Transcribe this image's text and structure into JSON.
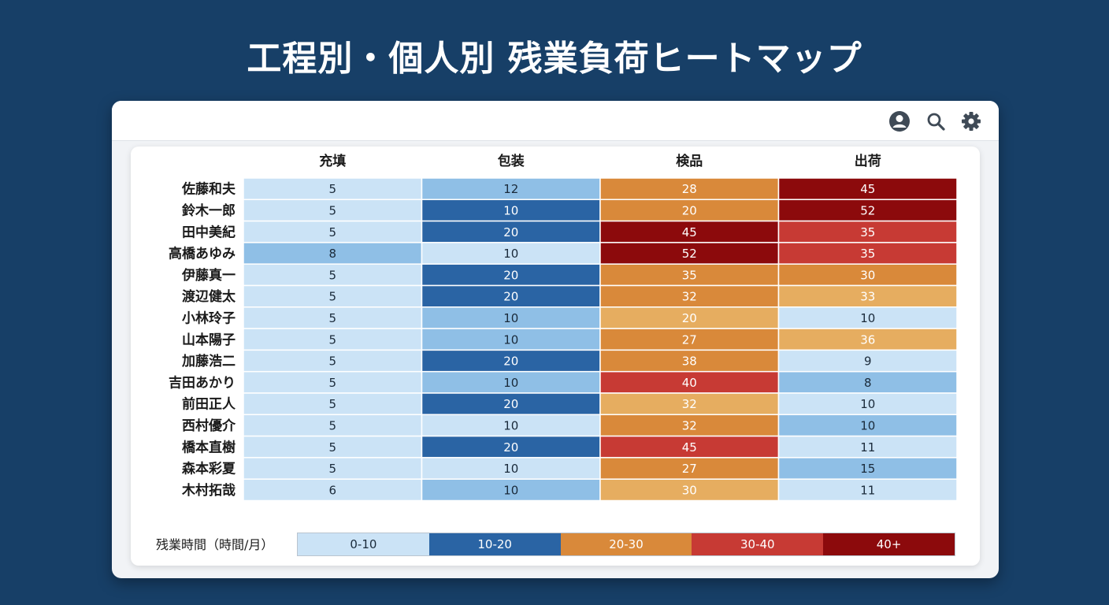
{
  "page": {
    "title": "工程別・個人別 残業負荷ヒートマップ"
  },
  "toolbar": {
    "icons": [
      "user-icon",
      "search-icon",
      "gear-icon"
    ]
  },
  "chart_data": {
    "type": "heatmap",
    "title": "工程別・個人別 残業負荷ヒートマップ",
    "columns": [
      "充填",
      "包装",
      "検品",
      "出荷"
    ],
    "rows": [
      "佐藤和夫",
      "鈴木一郎",
      "田中美紀",
      "高橋あゆみ",
      "伊藤真一",
      "渡辺健太",
      "小林玲子",
      "山本陽子",
      "加藤浩二",
      "吉田あかり",
      "前田正人",
      "西村優介",
      "橋本直樹",
      "森本彩夏",
      "木村拓哉"
    ],
    "values": [
      [
        5,
        12,
        28,
        45
      ],
      [
        5,
        10,
        20,
        52
      ],
      [
        5,
        20,
        45,
        35
      ],
      [
        8,
        10,
        52,
        35
      ],
      [
        5,
        20,
        35,
        30
      ],
      [
        5,
        20,
        32,
        33
      ],
      [
        5,
        10,
        20,
        10
      ],
      [
        5,
        10,
        27,
        36
      ],
      [
        5,
        20,
        38,
        9
      ],
      [
        5,
        10,
        40,
        8
      ],
      [
        5,
        20,
        32,
        10
      ],
      [
        5,
        10,
        32,
        10
      ],
      [
        5,
        20,
        45,
        11
      ],
      [
        5,
        10,
        27,
        15
      ],
      [
        6,
        10,
        30,
        11
      ]
    ],
    "cell_colors": [
      [
        "#cbe3f6",
        "#8fbfe6",
        "#d9893a",
        "#8c0a0c"
      ],
      [
        "#cbe3f6",
        "#2a64a4",
        "#d9893a",
        "#8c0a0c"
      ],
      [
        "#cbe3f6",
        "#2a64a4",
        "#8c0a0c",
        "#c73a34"
      ],
      [
        "#8fbfe6",
        "#cbe3f6",
        "#8c0a0c",
        "#c73a34"
      ],
      [
        "#cbe3f6",
        "#2a64a4",
        "#d9893a",
        "#d9893a"
      ],
      [
        "#cbe3f6",
        "#2a64a4",
        "#d9893a",
        "#e6ad60"
      ],
      [
        "#cbe3f6",
        "#8fbfe6",
        "#e6ad60",
        "#cbe3f6"
      ],
      [
        "#cbe3f6",
        "#8fbfe6",
        "#d9893a",
        "#e6ad60"
      ],
      [
        "#cbe3f6",
        "#2a64a4",
        "#d9893a",
        "#cbe3f6"
      ],
      [
        "#cbe3f6",
        "#8fbfe6",
        "#c73a34",
        "#8fbfe6"
      ],
      [
        "#cbe3f6",
        "#2a64a4",
        "#e6ad60",
        "#cbe3f6"
      ],
      [
        "#cbe3f6",
        "#cbe3f6",
        "#d9893a",
        "#8fbfe6"
      ],
      [
        "#cbe3f6",
        "#2a64a4",
        "#c73a34",
        "#cbe3f6"
      ],
      [
        "#cbe3f6",
        "#cbe3f6",
        "#d9893a",
        "#8fbfe6"
      ],
      [
        "#cbe3f6",
        "#8fbfe6",
        "#e6ad60",
        "#cbe3f6"
      ]
    ],
    "legend": {
      "title": "残業時間（時間/月）",
      "items": [
        {
          "label": "0-10",
          "color": "#cbe3f6",
          "text_color": "#1a2a3a"
        },
        {
          "label": "10-20",
          "color": "#2a64a4",
          "text_color": "#ffffff"
        },
        {
          "label": "20-30",
          "color": "#d9893a",
          "text_color": "#ffffff"
        },
        {
          "label": "30-40",
          "color": "#c73a34",
          "text_color": "#ffffff"
        },
        {
          "label": "40+",
          "color": "#8c0a0c",
          "text_color": "#ffffff"
        }
      ]
    }
  }
}
